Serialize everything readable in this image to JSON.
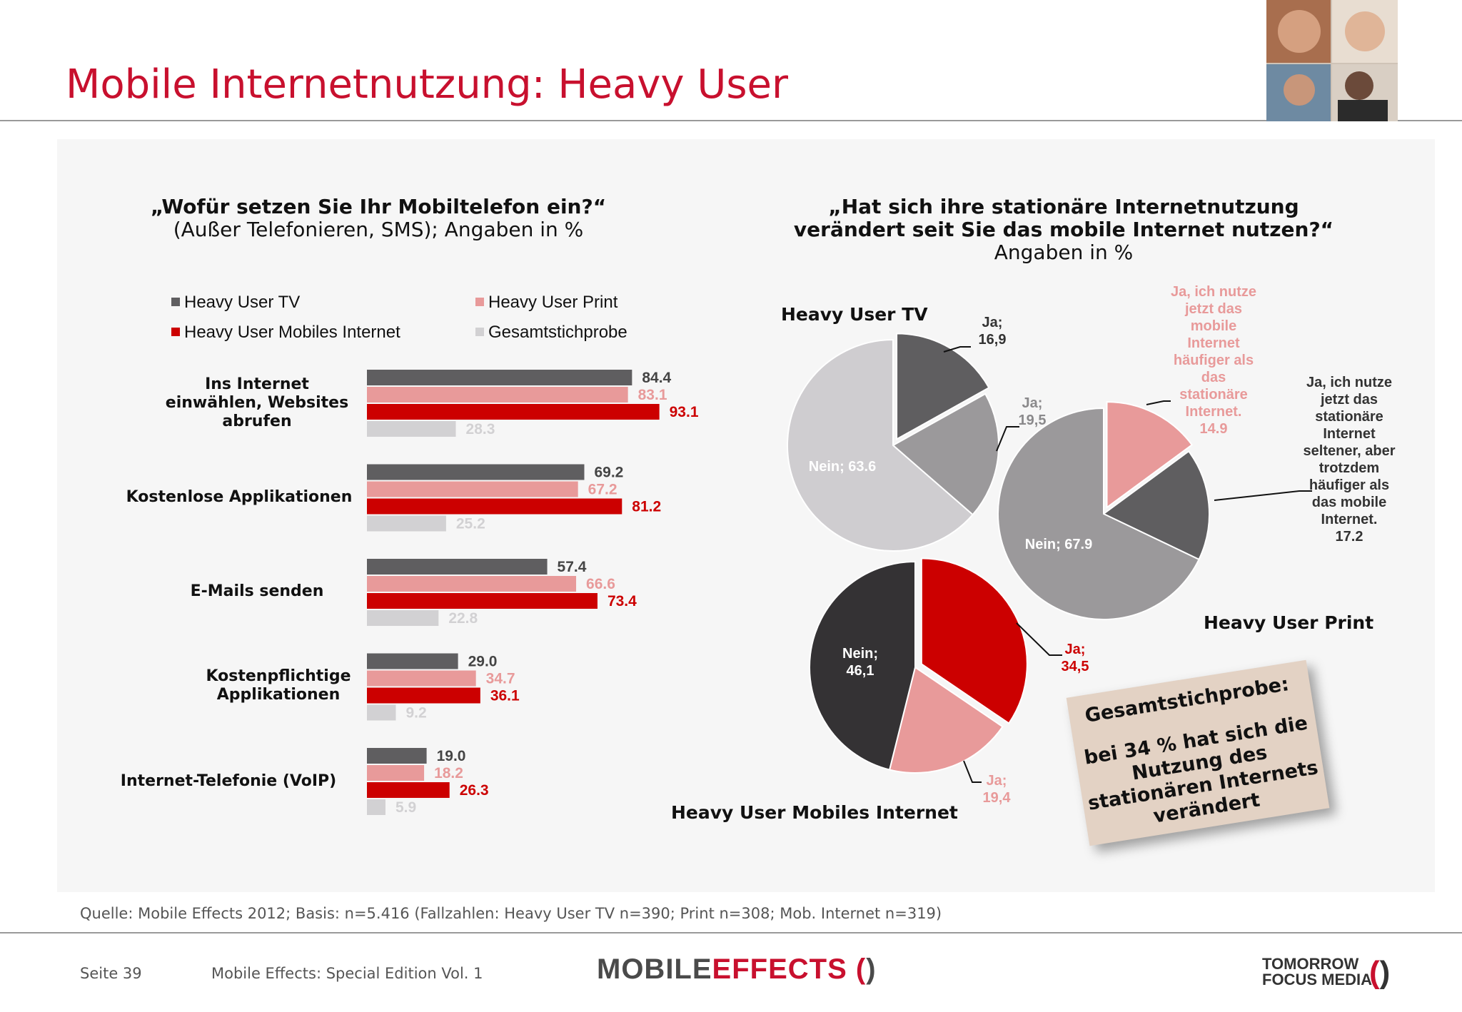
{
  "header": {
    "title": "Mobile Internetnutzung: Heavy User"
  },
  "left_question": {
    "title": "„Wofür setzen Sie Ihr Mobiltelefon ein?“",
    "subtitle": "(Außer Telefonieren, SMS); Angaben in %"
  },
  "right_question": {
    "title_line1": "„Hat sich ihre stationäre Internetnutzung",
    "title_line2": "verändert seit Sie das mobile Internet nutzen?“",
    "subtitle": "Angaben in %"
  },
  "colors": {
    "tv": "#5f5e60",
    "print": "#e89a9a",
    "mobile": "#cc0000",
    "total": "#d2d1d3",
    "pie_light": "#cfcdd0",
    "pie_mid": "#9b999b",
    "pie_dark": "#343234",
    "brand_red": "#c8102e"
  },
  "chart_data": [
    {
      "type": "bar",
      "orientation": "horizontal",
      "categories": [
        "Ins Internet einwählen, Websites abrufen",
        "Kostenlose Applikationen",
        "E-Mails senden",
        "Kostenpflichtige Applikationen",
        "Internet-Telefonie (VoIP)"
      ],
      "series": [
        {
          "name": "Heavy User TV",
          "values": [
            84.4,
            69.2,
            57.4,
            29.0,
            19.0
          ],
          "labels": [
            "84.4",
            "69.2",
            "57.4",
            "29.0",
            "19.0"
          ]
        },
        {
          "name": "Heavy User Print",
          "values": [
            83.1,
            67.2,
            66.6,
            34.7,
            18.2
          ],
          "labels": [
            "83.1",
            "67.2",
            "66.6",
            "34.7",
            "18.2"
          ]
        },
        {
          "name": "Heavy User Mobiles Internet",
          "values": [
            93.1,
            81.2,
            73.4,
            36.1,
            26.3
          ],
          "labels": [
            "93.1",
            "81.2",
            "73.4",
            "36.1",
            "26.3"
          ]
        },
        {
          "name": "Gesamtstichprobe",
          "values": [
            28.3,
            25.2,
            22.8,
            9.2,
            5.9
          ],
          "labels": [
            "28.3",
            "25.2",
            "22.8",
            "9.2",
            "5.9"
          ]
        }
      ],
      "xlim": [
        0,
        100
      ],
      "legend": "top"
    },
    {
      "type": "pie",
      "title": "Heavy User TV",
      "slices": [
        {
          "label": "Ja; 16,9",
          "value": 16.9
        },
        {
          "label": "Ja; 19,5",
          "value": 19.5
        },
        {
          "label": "Nein; 63.6",
          "value": 63.6
        }
      ]
    },
    {
      "type": "pie",
      "title": "Heavy User Print",
      "slices": [
        {
          "label": "Ja, ich nutze jetzt das mobile Internet häufiger als das stationäre Internet. 14.9",
          "value": 14.9
        },
        {
          "label": "Ja, ich nutze jetzt das stationäre Internet seltener, aber trotzdem häufiger als das mobile Internet. 17.2",
          "value": 17.2
        },
        {
          "label": "Nein; 67.9",
          "value": 67.9
        }
      ]
    },
    {
      "type": "pie",
      "title": "Heavy User Mobiles Internet",
      "slices": [
        {
          "label": "Ja; 34,5",
          "value": 34.5
        },
        {
          "label": "Ja; 19,4",
          "value": 19.4
        },
        {
          "label": "Nein; 46,1",
          "value": 46.1
        }
      ]
    }
  ],
  "pie_labels": {
    "tv_ja1_a": "Ja;",
    "tv_ja1_b": "16,9",
    "tv_ja2_a": "Ja;",
    "tv_ja2_b": "19,5",
    "tv_nein": "Nein; 63.6",
    "print_ja1": [
      "Ja, ich nutze",
      "jetzt das",
      "mobile",
      "Internet",
      "häufiger als",
      "das",
      "stationäre",
      "Internet.",
      "14.9"
    ],
    "print_ja2": [
      "Ja, ich nutze",
      "jetzt das",
      "stationäre",
      "Internet",
      "seltener, aber",
      "trotzdem",
      "häufiger als",
      "das mobile",
      "Internet.",
      "17.2"
    ],
    "print_nein": "Nein; 67.9",
    "mob_ja1_a": "Ja;",
    "mob_ja1_b": "34,5",
    "mob_ja2_a": "Ja;",
    "mob_ja2_b": "19,4",
    "mob_nein_a": "Nein;",
    "mob_nein_b": "46,1"
  },
  "note": {
    "heading": "Gesamtstichprobe:",
    "text": "bei 34 % hat sich die Nutzung des stationären Internets verändert"
  },
  "footer": {
    "source": "Quelle: Mobile Effects 2012; Basis: n=5.416 (Fallzahlen: Heavy User TV n=390; Print n=308; Mob. Internet n=319)",
    "page": "Seite 39",
    "edition": "Mobile Effects: Special Edition Vol. 1",
    "logo_left_a": "MOBILE",
    "logo_left_b": "EFFECTS",
    "logo_right_a": "TOMORROW",
    "logo_right_b": "FOCUS MEDIA"
  }
}
